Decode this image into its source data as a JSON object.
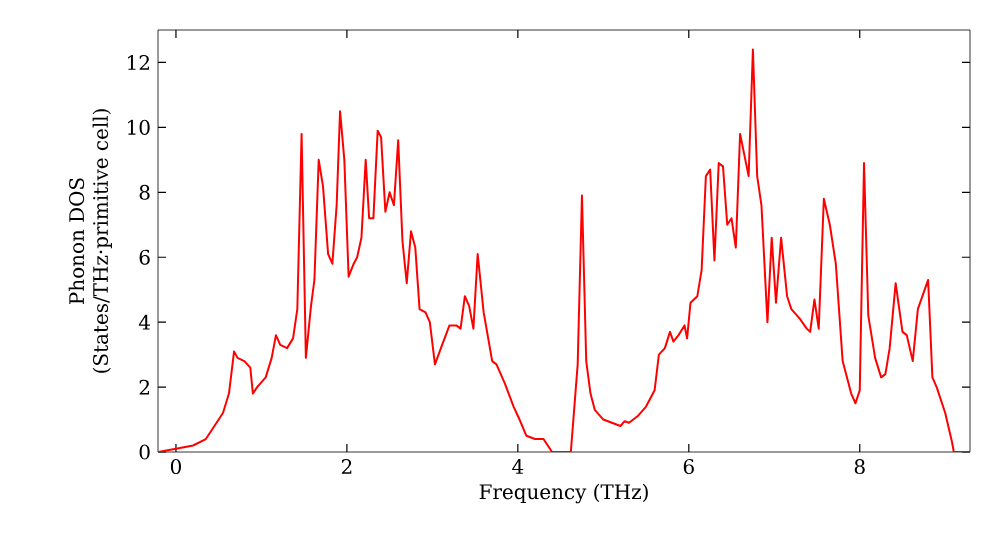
{
  "chart_data": {
    "type": "line",
    "xlabel": "Frequency (THz)",
    "ylabel": "Phonon DOS\n(States/THz·primitive cell)",
    "color": "#ff0000",
    "xlim": [
      -0.21,
      9.29
    ],
    "ylim": [
      0,
      13
    ],
    "xticks": [
      0,
      2,
      4,
      6,
      8
    ],
    "yticks": [
      0,
      2,
      4,
      6,
      8,
      10,
      12
    ],
    "grid": false,
    "marker": "none",
    "line_style": "solid",
    "x": [
      -0.21,
      0,
      0.2,
      0.35,
      0.45,
      0.55,
      0.62,
      0.68,
      0.72,
      0.8,
      0.87,
      0.9,
      0.95,
      1.05,
      1.12,
      1.17,
      1.22,
      1.3,
      1.37,
      1.42,
      1.47,
      1.52,
      1.58,
      1.62,
      1.67,
      1.72,
      1.78,
      1.83,
      1.88,
      1.92,
      1.97,
      2.02,
      2.08,
      2.12,
      2.17,
      2.22,
      2.26,
      2.31,
      2.36,
      2.4,
      2.45,
      2.5,
      2.55,
      2.6,
      2.65,
      2.7,
      2.75,
      2.8,
      2.85,
      2.92,
      2.97,
      3.03,
      3.1,
      3.2,
      3.28,
      3.33,
      3.38,
      3.43,
      3.48,
      3.53,
      3.6,
      3.7,
      3.75,
      3.85,
      3.95,
      4.02,
      4.1,
      4.2,
      4.3,
      4.4,
      4.62,
      4.7,
      4.75,
      4.8,
      4.85,
      4.9,
      5.0,
      5.1,
      5.2,
      5.25,
      5.3,
      5.4,
      5.5,
      5.6,
      5.65,
      5.72,
      5.78,
      5.82,
      5.88,
      5.95,
      5.98,
      6.02,
      6.1,
      6.15,
      6.2,
      6.25,
      6.3,
      6.35,
      6.4,
      6.45,
      6.5,
      6.55,
      6.6,
      6.7,
      6.75,
      6.8,
      6.85,
      6.92,
      6.97,
      7.02,
      7.08,
      7.15,
      7.2,
      7.3,
      7.38,
      7.42,
      7.47,
      7.52,
      7.58,
      7.65,
      7.72,
      7.8,
      7.9,
      7.95,
      8.0,
      8.05,
      8.1,
      8.18,
      8.25,
      8.3,
      8.35,
      8.42,
      8.5,
      8.55,
      8.62,
      8.68,
      8.8,
      8.85,
      8.9,
      9.0,
      9.08,
      9.1,
      9.29
    ],
    "values": [
      0,
      0.1,
      0.2,
      0.4,
      0.8,
      1.2,
      1.8,
      3.1,
      2.9,
      2.8,
      2.6,
      1.8,
      2.0,
      2.3,
      2.9,
      3.6,
      3.3,
      3.2,
      3.5,
      4.4,
      9.8,
      2.9,
      4.5,
      5.3,
      9.0,
      8.2,
      6.1,
      5.8,
      7.6,
      10.5,
      9.0,
      5.4,
      5.8,
      6.0,
      6.6,
      9.0,
      7.2,
      7.2,
      9.9,
      9.7,
      7.4,
      8.0,
      7.6,
      9.6,
      6.5,
      5.2,
      6.8,
      6.3,
      4.4,
      4.3,
      4.0,
      2.7,
      3.2,
      3.9,
      3.9,
      3.8,
      4.8,
      4.5,
      3.8,
      6.1,
      4.3,
      2.8,
      2.7,
      2.1,
      1.4,
      1.0,
      0.5,
      0.4,
      0.4,
      0,
      0,
      2.7,
      7.9,
      2.8,
      1.8,
      1.3,
      1.0,
      0.9,
      0.8,
      0.95,
      0.9,
      1.1,
      1.4,
      1.9,
      3.0,
      3.2,
      3.7,
      3.4,
      3.6,
      3.9,
      3.5,
      4.6,
      4.8,
      5.6,
      8.5,
      8.7,
      5.9,
      8.9,
      8.8,
      7.0,
      7.2,
      6.3,
      9.8,
      8.5,
      12.4,
      8.5,
      7.6,
      4.0,
      6.6,
      4.6,
      6.6,
      4.8,
      4.4,
      4.1,
      3.8,
      3.7,
      4.7,
      3.8,
      7.8,
      7.0,
      5.8,
      2.8,
      1.8,
      1.5,
      1.9,
      8.9,
      4.2,
      2.9,
      2.3,
      2.4,
      3.2,
      5.2,
      3.7,
      3.6,
      2.8,
      4.4,
      5.3,
      2.3,
      2.0,
      1.2,
      0.3,
      0,
      0
    ]
  }
}
